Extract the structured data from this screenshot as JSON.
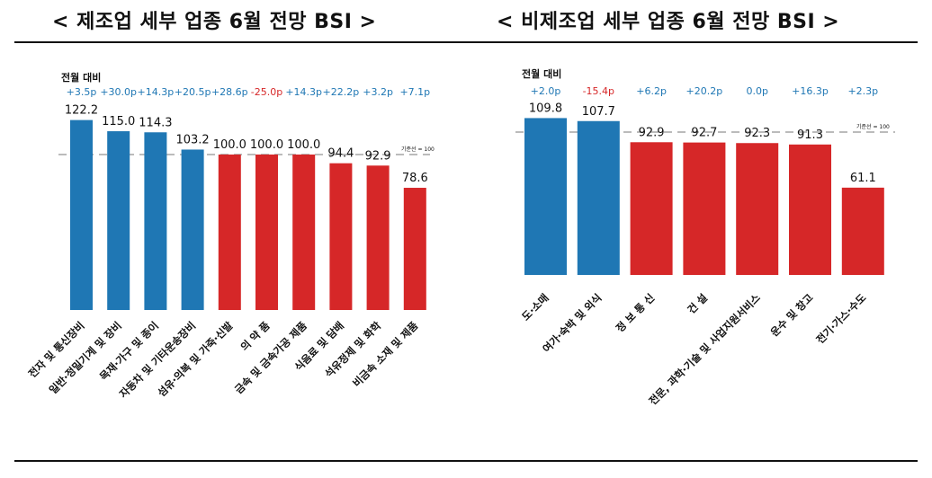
{
  "titles": {
    "left": "< 제조업 세부 업종 6월 전망 BSI >",
    "right": "< 비제조업 세부 업종 6월 전망 BSI >"
  },
  "colors": {
    "above": "#1f77b4",
    "below": "#d62728",
    "change_up": "#1f77b4",
    "change_down": "#d62728",
    "baseline": "#bbbbbb"
  },
  "chart_data": [
    {
      "type": "bar",
      "change_header": "전월 대비",
      "baseline_value": 100,
      "baseline_label": "기준선 = 100",
      "ylim": [
        0,
        130
      ],
      "categories": [
        "전자 및 통신장비",
        "일반·정밀기계 및 장비",
        "목재·가구 및 종이",
        "자동차 및 기타운송장비",
        "섬유·의복 및 가죽·신발",
        "의 약 품",
        "금속 및 금속가공 제품",
        "식음료 및 담배",
        "석유정제 및 화학",
        "비금속 소재 및 제품"
      ],
      "values": [
        122.2,
        115.0,
        114.3,
        103.2,
        100.0,
        100.0,
        100.0,
        94.4,
        92.9,
        78.6
      ],
      "value_labels": [
        "122.2",
        "115.0",
        "114.3",
        "103.2",
        "100.0",
        "100.0",
        "100.0",
        "94.4",
        "92.9",
        "78.6"
      ],
      "changes": [
        "+3.5p",
        "+30.0p",
        "+14.3p",
        "+20.5p",
        "+28.6p",
        "-25.0p",
        "+14.3p",
        "+22.2p",
        "+3.2p",
        "+7.1p"
      ]
    },
    {
      "type": "bar",
      "change_header": "전월 대비",
      "baseline_value": 100,
      "baseline_label": "기준선 = 100",
      "ylim": [
        0,
        118
      ],
      "categories": [
        "도·소매",
        "여가·숙박 및 외식",
        "정 보 통 신",
        "건 설",
        "전문, 과학·기술 및 사업지원서비스",
        "운수 및 창고",
        "전기·가스·수도"
      ],
      "values": [
        109.8,
        107.7,
        92.9,
        92.7,
        92.3,
        91.3,
        61.1
      ],
      "value_labels": [
        "109.8",
        "107.7",
        "92.9",
        "92.7",
        "92.3",
        "91.3",
        "61.1"
      ],
      "changes": [
        "+2.0p",
        "-15.4p",
        "+6.2p",
        "+20.2p",
        "0.0p",
        "+16.3p",
        "+2.3p"
      ]
    }
  ]
}
